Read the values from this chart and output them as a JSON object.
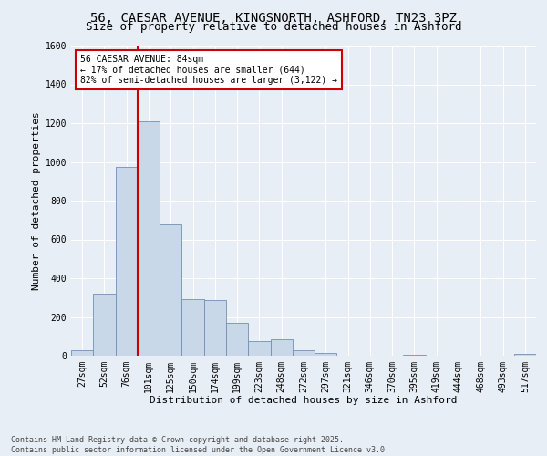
{
  "title_line1": "56, CAESAR AVENUE, KINGSNORTH, ASHFORD, TN23 3PZ",
  "title_line2": "Size of property relative to detached houses in Ashford",
  "xlabel": "Distribution of detached houses by size in Ashford",
  "ylabel": "Number of detached properties",
  "categories": [
    "27sqm",
    "52sqm",
    "76sqm",
    "101sqm",
    "125sqm",
    "150sqm",
    "174sqm",
    "199sqm",
    "223sqm",
    "248sqm",
    "272sqm",
    "297sqm",
    "321sqm",
    "346sqm",
    "370sqm",
    "395sqm",
    "419sqm",
    "444sqm",
    "468sqm",
    "493sqm",
    "517sqm"
  ],
  "values": [
    30,
    320,
    975,
    1210,
    680,
    290,
    285,
    170,
    75,
    85,
    30,
    15,
    0,
    0,
    0,
    5,
    0,
    0,
    0,
    0,
    10
  ],
  "bar_color": "#c8d8e8",
  "bar_edge_color": "#7090b0",
  "property_line_x": 2.5,
  "annotation_text": "56 CAESAR AVENUE: 84sqm\n← 17% of detached houses are smaller (644)\n82% of semi-detached houses are larger (3,122) →",
  "annotation_box_color": "#ffffff",
  "annotation_box_edge_color": "#cc0000",
  "vline_color": "#cc0000",
  "ylim": [
    0,
    1600
  ],
  "yticks": [
    0,
    200,
    400,
    600,
    800,
    1000,
    1200,
    1400,
    1600
  ],
  "background_color": "#e8eef5",
  "grid_color": "#ffffff",
  "footer_line1": "Contains HM Land Registry data © Crown copyright and database right 2025.",
  "footer_line2": "Contains public sector information licensed under the Open Government Licence v3.0.",
  "title_fontsize": 10,
  "subtitle_fontsize": 9,
  "axis_label_fontsize": 8,
  "tick_fontsize": 7,
  "annotation_fontsize": 7,
  "footer_fontsize": 6
}
